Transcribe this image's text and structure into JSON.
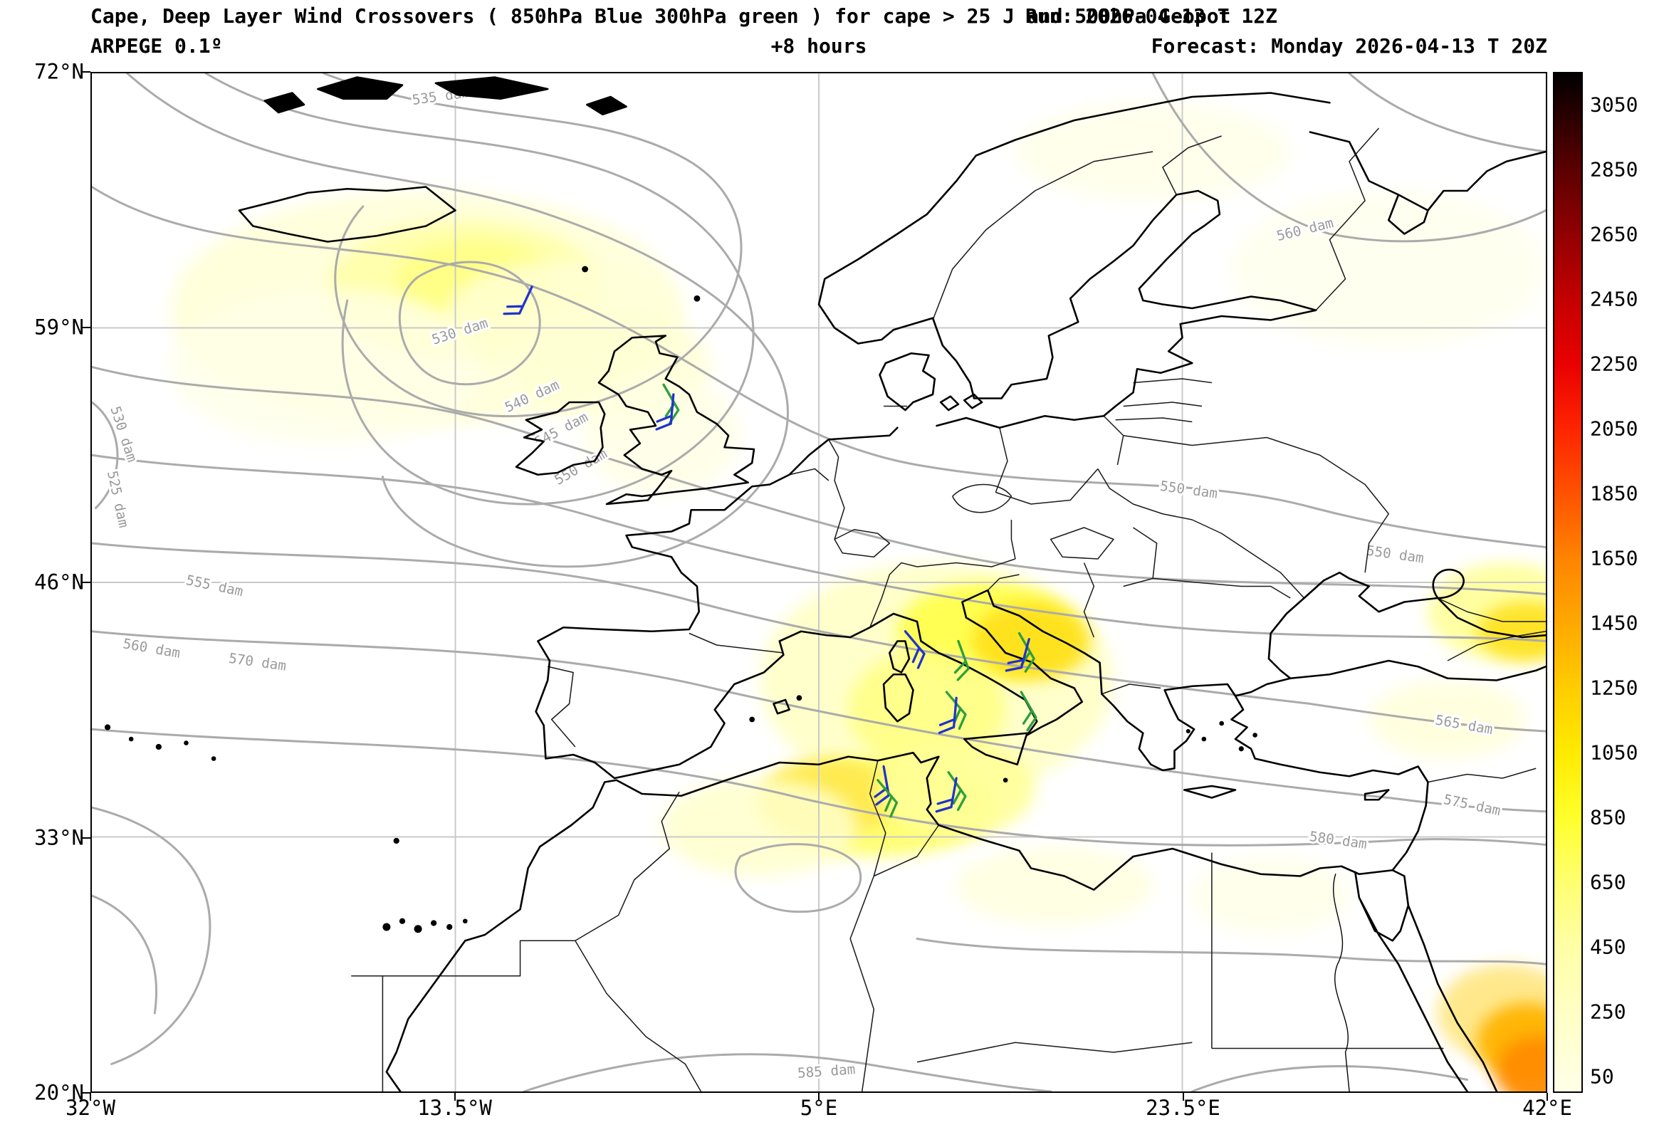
{
  "header": {
    "title_line1": "Cape, Deep Layer Wind Crossovers ( 850hPa Blue 300hPa green ) for cape > 25 J and 500hPa Geopot",
    "run_label": "Run: 2026-04-13 T 12Z",
    "model_label": "ARPEGE 0.1º",
    "step_label": "+8 hours",
    "forecast_label": "Forecast: Monday 2026-04-13 T 20Z"
  },
  "colors": {
    "contour": "#ababab",
    "grid": "#c9c9c9",
    "coast": "#000000",
    "barb_850hPa_blue": "#2233cc",
    "barb_300hPa_green": "#2e9e3e"
  },
  "chart_data": {
    "type": "map-contour",
    "title": "Cape, Deep Layer Wind Crossovers with 500hPa Geopotential",
    "projection": {
      "lon_min": -32,
      "lon_max": 42,
      "lat_min": 20,
      "lat_max": 72
    },
    "x_axis": {
      "ticks": [
        {
          "label": "32°W",
          "lon": -32
        },
        {
          "label": "13.5°W",
          "lon": -13.5
        },
        {
          "label": "5°E",
          "lon": 5
        },
        {
          "label": "23.5°E",
          "lon": 23.5
        },
        {
          "label": "42°E",
          "lon": 42
        }
      ]
    },
    "y_axis": {
      "ticks": [
        {
          "label": "72°N",
          "lat": 72
        },
        {
          "label": "59°N",
          "lat": 59
        },
        {
          "label": "46°N",
          "lat": 46
        },
        {
          "label": "33°N",
          "lat": 33
        },
        {
          "label": "20°N",
          "lat": 20
        }
      ]
    },
    "colorbar": {
      "min": 0,
      "max": 3150,
      "ticks": [
        3050,
        2850,
        2650,
        2450,
        2250,
        2050,
        1850,
        1650,
        1450,
        1250,
        1050,
        850,
        650,
        450,
        250,
        50
      ],
      "stops": [
        {
          "value": 0,
          "color": "#ffffe8"
        },
        {
          "value": 250,
          "color": "#ffffc4"
        },
        {
          "value": 450,
          "color": "#ffffa6"
        },
        {
          "value": 650,
          "color": "#ffff70"
        },
        {
          "value": 850,
          "color": "#ffff2b"
        },
        {
          "value": 1050,
          "color": "#ffea00"
        },
        {
          "value": 1250,
          "color": "#ffcc00"
        },
        {
          "value": 1450,
          "color": "#ffa800"
        },
        {
          "value": 1650,
          "color": "#ff8400"
        },
        {
          "value": 1850,
          "color": "#ff5200"
        },
        {
          "value": 2050,
          "color": "#ff2400"
        },
        {
          "value": 2250,
          "color": "#ea0000"
        },
        {
          "value": 2450,
          "color": "#c40000"
        },
        {
          "value": 2650,
          "color": "#920000"
        },
        {
          "value": 2850,
          "color": "#5c0000"
        },
        {
          "value": 3050,
          "color": "#200000"
        },
        {
          "value": 3150,
          "color": "#000000"
        }
      ]
    },
    "geopotential_labels": [
      {
        "text": "535 dam",
        "lon": -14.2,
        "lat": 70.6,
        "rot": -8
      },
      {
        "text": "530 dam",
        "lon": -13.2,
        "lat": 58.6,
        "rot": -18
      },
      {
        "text": "540 dam",
        "lon": -9.5,
        "lat": 55.3,
        "rot": -25
      },
      {
        "text": "545 dam",
        "lon": -8.0,
        "lat": 53.6,
        "rot": -28
      },
      {
        "text": "550 dam",
        "lon": -7.0,
        "lat": 51.7,
        "rot": -30
      },
      {
        "text": "530 dam",
        "lon": -30.6,
        "lat": 53.5,
        "rot": 72
      },
      {
        "text": "525 dam",
        "lon": -30.9,
        "lat": 50.2,
        "rot": 78
      },
      {
        "text": "555 dam",
        "lon": -25.8,
        "lat": 45.6,
        "rot": 12
      },
      {
        "text": "560 dam",
        "lon": -29.0,
        "lat": 42.4,
        "rot": 10
      },
      {
        "text": "570 dam",
        "lon": -23.6,
        "lat": 41.7,
        "rot": 8
      },
      {
        "text": "560 dam",
        "lon": 29.8,
        "lat": 63.8,
        "rot": -14
      },
      {
        "text": "550 dam",
        "lon": 23.8,
        "lat": 50.5,
        "rot": 8
      },
      {
        "text": "550 dam",
        "lon": 34.3,
        "lat": 47.2,
        "rot": 8
      },
      {
        "text": "565 dam",
        "lon": 37.8,
        "lat": 38.5,
        "rot": 10
      },
      {
        "text": "575 dam",
        "lon": 38.2,
        "lat": 34.4,
        "rot": 12
      },
      {
        "text": "580 dam",
        "lon": 31.4,
        "lat": 32.6,
        "rot": 8
      },
      {
        "text": "585 dam",
        "lon": 5.4,
        "lat": 20.8,
        "rot": -4
      }
    ],
    "wind_barbs": [
      {
        "lon": -9.6,
        "lat": 61.1,
        "level": "850hPa",
        "color": "#2233cc",
        "angle": 205
      },
      {
        "lon": -2.9,
        "lat": 56.1,
        "level": "300hPa",
        "color": "#2e9e3e",
        "angle": 150
      },
      {
        "lon": -2.4,
        "lat": 55.6,
        "level": "850hPa",
        "color": "#2233cc",
        "angle": 185
      },
      {
        "lon": 9.4,
        "lat": 43.5,
        "level": "850hPa",
        "color": "#2233cc",
        "angle": 140
      },
      {
        "lon": 12.1,
        "lat": 43.0,
        "level": "300hPa",
        "color": "#2e9e3e",
        "angle": 160
      },
      {
        "lon": 15.2,
        "lat": 43.4,
        "level": "300hPa",
        "color": "#2e9e3e",
        "angle": 150
      },
      {
        "lon": 15.7,
        "lat": 43.1,
        "level": "850hPa",
        "color": "#2233cc",
        "angle": 195
      },
      {
        "lon": 11.5,
        "lat": 40.4,
        "level": "300hPa",
        "color": "#2e9e3e",
        "angle": 140
      },
      {
        "lon": 12.0,
        "lat": 40.1,
        "level": "850hPa",
        "color": "#2233cc",
        "angle": 185
      },
      {
        "lon": 15.3,
        "lat": 40.4,
        "level": "300hPa",
        "color": "#2e9e3e",
        "angle": 150
      },
      {
        "lon": 8.3,
        "lat": 36.6,
        "level": "850hPa",
        "color": "#2233cc",
        "angle": 170
      },
      {
        "lon": 8.0,
        "lat": 35.9,
        "level": "300hPa",
        "color": "#2e9e3e",
        "angle": 140
      },
      {
        "lon": 11.6,
        "lat": 36.3,
        "level": "300hPa",
        "color": "#2e9e3e",
        "angle": 145
      },
      {
        "lon": 12.0,
        "lat": 36.0,
        "level": "850hPa",
        "color": "#2233cc",
        "angle": 190
      }
    ],
    "cape_shading": [
      {
        "lon": -15,
        "lat": 60,
        "rx": 13,
        "ry": 6,
        "color": "#ffffd9",
        "opacity": 0.9
      },
      {
        "lon": -13,
        "lat": 61,
        "rx": 7,
        "ry": 3.5,
        "color": "#ffffa8",
        "opacity": 0.9
      },
      {
        "lon": -12.5,
        "lat": 61.5,
        "rx": 4,
        "ry": 2,
        "color": "#ffff82",
        "opacity": 0.85
      },
      {
        "lon": -20,
        "lat": 57,
        "rx": 8,
        "ry": 4,
        "color": "#ffffe8",
        "opacity": 0.75
      },
      {
        "lon": -8,
        "lat": 59.5,
        "rx": 6,
        "ry": 3,
        "color": "#ffffd9",
        "opacity": 0.8
      },
      {
        "lon": -5.5,
        "lat": 57,
        "rx": 5,
        "ry": 3,
        "color": "#ffffd4",
        "opacity": 0.8
      },
      {
        "lon": -3,
        "lat": 53.5,
        "rx": 4,
        "ry": 3,
        "color": "#ffffe4",
        "opacity": 0.8
      },
      {
        "lon": 22,
        "lat": 68,
        "rx": 7,
        "ry": 2.5,
        "color": "#ffffe6",
        "opacity": 0.75
      },
      {
        "lon": 34,
        "lat": 62,
        "rx": 8,
        "ry": 4,
        "color": "#ffffea",
        "opacity": 0.7
      },
      {
        "lon": 11,
        "lat": 41,
        "rx": 9,
        "ry": 6,
        "color": "#ffffc6",
        "opacity": 0.9
      },
      {
        "lon": 13.5,
        "lat": 43.5,
        "rx": 4.5,
        "ry": 2.5,
        "color": "#ffff4d",
        "opacity": 0.95
      },
      {
        "lon": 15.8,
        "lat": 43,
        "rx": 3,
        "ry": 2,
        "color": "#ffe11a",
        "opacity": 0.95
      },
      {
        "lon": 10.5,
        "lat": 39.5,
        "rx": 4,
        "ry": 3,
        "color": "#ffff85",
        "opacity": 0.9
      },
      {
        "lon": 8,
        "lat": 34.5,
        "rx": 6,
        "ry": 2.5,
        "color": "#ffff66",
        "opacity": 0.9
      },
      {
        "lon": 5.5,
        "lat": 35,
        "rx": 3.5,
        "ry": 2,
        "color": "#ffe84d",
        "opacity": 0.9
      },
      {
        "lon": 12,
        "lat": 35.5,
        "rx": 4,
        "ry": 2.5,
        "color": "#ffff99",
        "opacity": 0.9
      },
      {
        "lon": 2,
        "lat": 33.5,
        "rx": 5,
        "ry": 2.5,
        "color": "#ffffcc",
        "opacity": 0.85
      },
      {
        "lon": 17,
        "lat": 30.5,
        "rx": 5,
        "ry": 2,
        "color": "#ffffdd",
        "opacity": 0.8
      },
      {
        "lon": 28,
        "lat": 30,
        "rx": 4,
        "ry": 2,
        "color": "#ffffe8",
        "opacity": 0.8
      },
      {
        "lon": 40,
        "lat": 44.5,
        "rx": 4,
        "ry": 2.5,
        "color": "#ffff99",
        "opacity": 0.9
      },
      {
        "lon": 41,
        "lat": 43.5,
        "rx": 2.5,
        "ry": 1.5,
        "color": "#ffe11a",
        "opacity": 0.9
      },
      {
        "lon": 37,
        "lat": 39,
        "rx": 4,
        "ry": 2,
        "color": "#ffffd9",
        "opacity": 0.8
      },
      {
        "lon": 40,
        "lat": 24,
        "rx": 3.5,
        "ry": 2.5,
        "color": "#ffe680",
        "opacity": 0.9
      },
      {
        "lon": 41,
        "lat": 22.5,
        "rx": 2.5,
        "ry": 2,
        "color": "#ffb300",
        "opacity": 0.95
      },
      {
        "lon": 41.5,
        "lat": 21,
        "rx": 2,
        "ry": 1.8,
        "color": "#ff8c00",
        "opacity": 0.95
      }
    ]
  }
}
